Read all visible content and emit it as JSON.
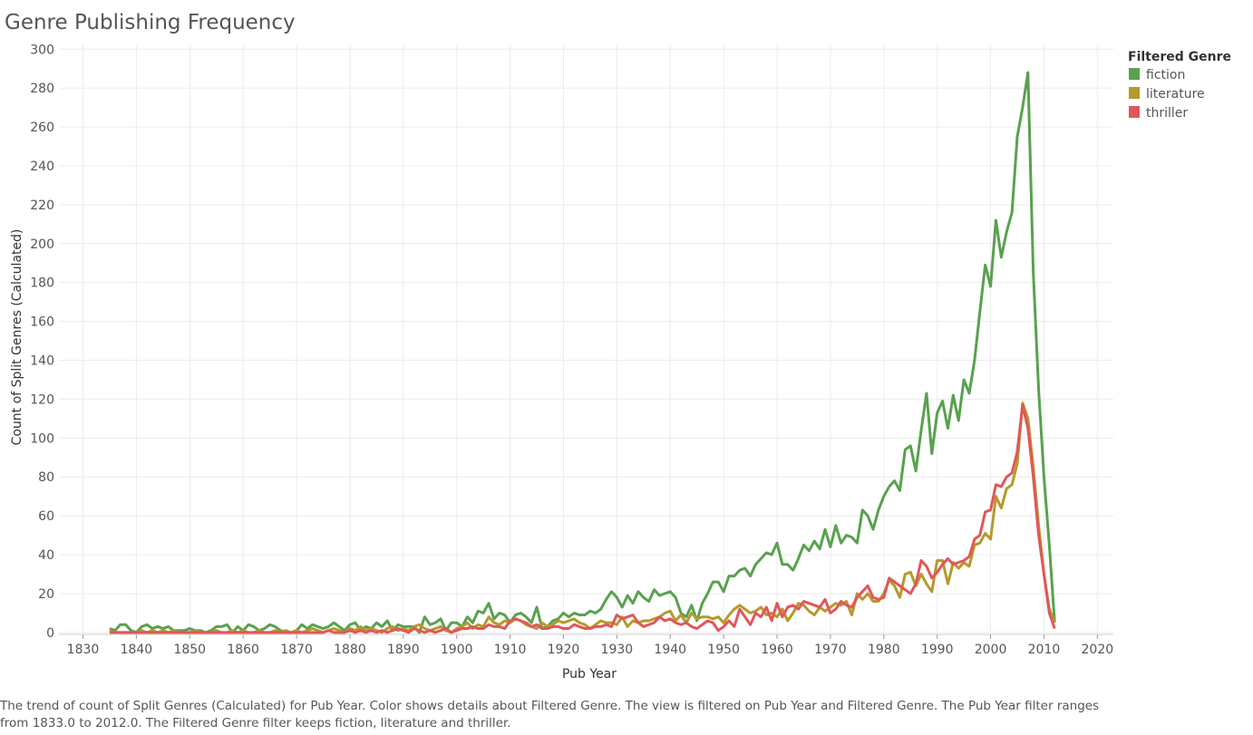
{
  "chart_data": {
    "type": "line",
    "title": "Genre Publishing Frequency",
    "x_label": "Pub Year",
    "y_label": "Count of Split Genres (Calculated)",
    "legend_title": "Filtered Genre",
    "legend_position": "top-right",
    "caption": "The trend of count of Split Genres (Calculated) for Pub Year.  Color shows details about Filtered Genre. The view is filtered on Pub Year and Filtered Genre. The Pub Year filter ranges from 1833.0 to 2012.0. The Filtered Genre filter keeps fiction, literature and thriller.",
    "grid": true,
    "xlim": [
      1825.5,
      2023
    ],
    "xticks": [
      1830,
      1840,
      1850,
      1860,
      1870,
      1880,
      1890,
      1900,
      1910,
      1920,
      1930,
      1940,
      1950,
      1960,
      1970,
      1980,
      1990,
      2000,
      2010,
      2020
    ],
    "ylim": [
      -1,
      302
    ],
    "yticks": [
      0,
      20,
      40,
      60,
      80,
      100,
      120,
      140,
      160,
      180,
      200,
      220,
      240,
      260,
      280,
      300
    ],
    "x": [
      1835,
      1836,
      1837,
      1838,
      1839,
      1840,
      1841,
      1842,
      1843,
      1844,
      1845,
      1846,
      1847,
      1848,
      1849,
      1850,
      1851,
      1852,
      1853,
      1854,
      1855,
      1856,
      1857,
      1858,
      1859,
      1860,
      1861,
      1862,
      1863,
      1864,
      1865,
      1866,
      1867,
      1868,
      1869,
      1870,
      1871,
      1872,
      1873,
      1874,
      1875,
      1876,
      1877,
      1878,
      1879,
      1880,
      1881,
      1882,
      1883,
      1884,
      1885,
      1886,
      1887,
      1888,
      1889,
      1890,
      1891,
      1892,
      1893,
      1894,
      1895,
      1896,
      1897,
      1898,
      1899,
      1900,
      1901,
      1902,
      1903,
      1904,
      1905,
      1906,
      1907,
      1908,
      1909,
      1910,
      1911,
      1912,
      1913,
      1914,
      1915,
      1916,
      1917,
      1918,
      1919,
      1920,
      1921,
      1922,
      1923,
      1924,
      1925,
      1926,
      1927,
      1928,
      1929,
      1930,
      1931,
      1932,
      1933,
      1934,
      1935,
      1936,
      1937,
      1938,
      1939,
      1940,
      1941,
      1942,
      1943,
      1944,
      1945,
      1946,
      1947,
      1948,
      1949,
      1950,
      1951,
      1952,
      1953,
      1954,
      1955,
      1956,
      1957,
      1958,
      1959,
      1960,
      1961,
      1962,
      1963,
      1964,
      1965,
      1966,
      1967,
      1968,
      1969,
      1970,
      1971,
      1972,
      1973,
      1974,
      1975,
      1976,
      1977,
      1978,
      1979,
      1980,
      1981,
      1982,
      1983,
      1984,
      1985,
      1986,
      1987,
      1988,
      1989,
      1990,
      1991,
      1992,
      1993,
      1994,
      1995,
      1996,
      1997,
      1998,
      1999,
      2000,
      2001,
      2002,
      2003,
      2004,
      2005,
      2006,
      2007,
      2008,
      2009,
      2010,
      2011,
      2012
    ],
    "series": [
      {
        "name": "fiction",
        "color": "#59a14f",
        "values": [
          2,
          1,
          4,
          4,
          1,
          0,
          3,
          4,
          2,
          3,
          2,
          3,
          1,
          1,
          1,
          2,
          1,
          1,
          0,
          1,
          3,
          3,
          4,
          0,
          3,
          1,
          4,
          3,
          1,
          2,
          4,
          3,
          1,
          0,
          0,
          1,
          4,
          2,
          4,
          3,
          2,
          3,
          5,
          3,
          1,
          4,
          5,
          1,
          3,
          2,
          5,
          3,
          6,
          1,
          4,
          3,
          3,
          3,
          0,
          8,
          4,
          5,
          7,
          1,
          5,
          5,
          3,
          8,
          5,
          11,
          10,
          15,
          7,
          10,
          9,
          5,
          9,
          10,
          8,
          5,
          13,
          2,
          3,
          6,
          7,
          10,
          8,
          10,
          9,
          9,
          11,
          10,
          12,
          17,
          21,
          18,
          13,
          19,
          15,
          21,
          18,
          16,
          22,
          19,
          20,
          21,
          18,
          10,
          8,
          14,
          6,
          15,
          20,
          26,
          26,
          21,
          29,
          29,
          32,
          33,
          29,
          35,
          38,
          41,
          40,
          46,
          35,
          35,
          32,
          38,
          45,
          42,
          47,
          43,
          53,
          44,
          55,
          46,
          50,
          49,
          46,
          63,
          60,
          53,
          63,
          70,
          75,
          78,
          73,
          94,
          96,
          83,
          104,
          123,
          92,
          113,
          119,
          105,
          122,
          109,
          130,
          123,
          140,
          165,
          189,
          178,
          212,
          193,
          206,
          216,
          255,
          270,
          288,
          185,
          125,
          80,
          45,
          5
        ]
      },
      {
        "name": "literature",
        "color": "#b6992d",
        "values": [
          1,
          0,
          0,
          0,
          0,
          0,
          1,
          0,
          1,
          0,
          1,
          0,
          1,
          0,
          0,
          0,
          1,
          0,
          0,
          0,
          1,
          0,
          0,
          1,
          0,
          1,
          0,
          0,
          1,
          0,
          0,
          1,
          0,
          1,
          0,
          1,
          0,
          1,
          2,
          1,
          0,
          1,
          2,
          1,
          0,
          2,
          1,
          3,
          1,
          2,
          1,
          0,
          2,
          3,
          1,
          2,
          1,
          3,
          4,
          2,
          1,
          2,
          3,
          1,
          0,
          2,
          3,
          5,
          2,
          4,
          3,
          8,
          5,
          4,
          6,
          5,
          7,
          6,
          4,
          3,
          2,
          5,
          3,
          4,
          6,
          5,
          6,
          7,
          5,
          4,
          2,
          4,
          6,
          5,
          5,
          4,
          8,
          3,
          6,
          5,
          6,
          6,
          7,
          8,
          10,
          11,
          6,
          9,
          5,
          10,
          7,
          8,
          8,
          7,
          8,
          5,
          9,
          12,
          14,
          12,
          10,
          11,
          13,
          9,
          10,
          8,
          12,
          6,
          10,
          15,
          14,
          11,
          9,
          13,
          11,
          13,
          15,
          14,
          16,
          9,
          20,
          17,
          20,
          16,
          16,
          20,
          27,
          24,
          18,
          30,
          31,
          24,
          30,
          25,
          21,
          37,
          37,
          25,
          36,
          33,
          36,
          34,
          45,
          46,
          51,
          48,
          70,
          64,
          74,
          76,
          87,
          118,
          110,
          85,
          55,
          30,
          12,
          5
        ]
      },
      {
        "name": "thriller",
        "color": "#e15759",
        "values": [
          0,
          0,
          0,
          0,
          0,
          0,
          0,
          0,
          0,
          0,
          0,
          0,
          0,
          0,
          0,
          0,
          0,
          0,
          0,
          0,
          0,
          0,
          0,
          0,
          0,
          0,
          0,
          0,
          0,
          0,
          0,
          0,
          0,
          0,
          0,
          0,
          0,
          0,
          0,
          0,
          0,
          1,
          0,
          0,
          0,
          1,
          0,
          1,
          0,
          1,
          0,
          1,
          0,
          1,
          2,
          1,
          0,
          2,
          1,
          0,
          1,
          0,
          1,
          2,
          0,
          1,
          2,
          2,
          3,
          2,
          2,
          4,
          3,
          3,
          2,
          6,
          7,
          6,
          5,
          3,
          4,
          2,
          2,
          3,
          3,
          2,
          2,
          4,
          3,
          2,
          2,
          3,
          3,
          4,
          3,
          9,
          7,
          8,
          9,
          5,
          3,
          4,
          5,
          8,
          6,
          7,
          5,
          4,
          5,
          3,
          2,
          4,
          6,
          5,
          1,
          3,
          6,
          3,
          12,
          8,
          4,
          10,
          8,
          13,
          6,
          15,
          8,
          13,
          14,
          12,
          16,
          15,
          14,
          13,
          17,
          10,
          12,
          16,
          14,
          13,
          18,
          21,
          24,
          18,
          17,
          18,
          28,
          26,
          24,
          22,
          20,
          25,
          37,
          34,
          28,
          31,
          35,
          38,
          35,
          36,
          37,
          39,
          48,
          50,
          62,
          63,
          76,
          75,
          80,
          82,
          93,
          117,
          105,
          80,
          50,
          30,
          10,
          2
        ]
      }
    ]
  }
}
